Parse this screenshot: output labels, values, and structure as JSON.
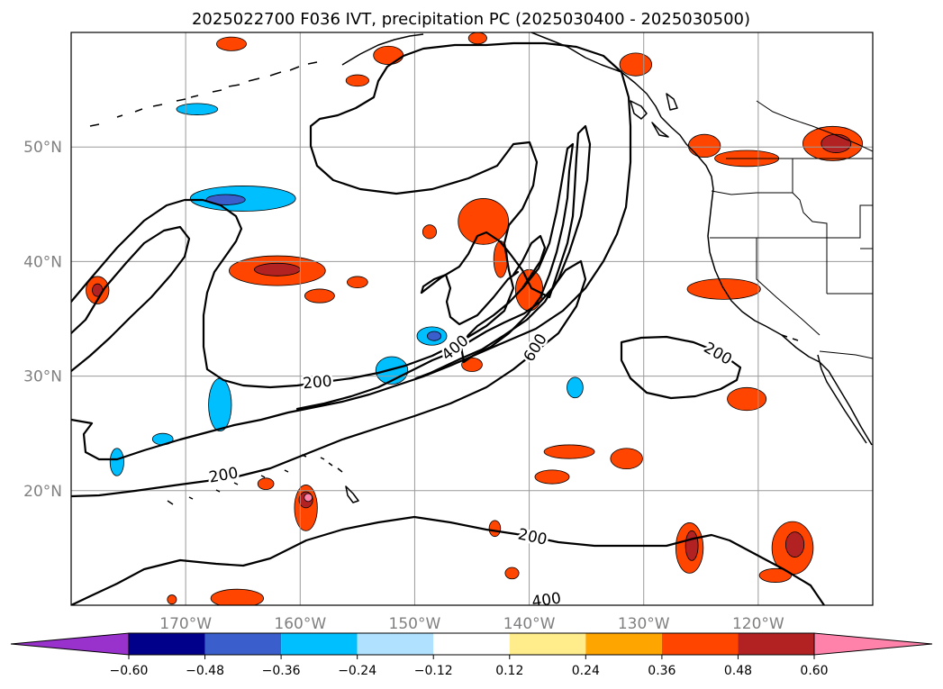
{
  "chart_data": {
    "type": "contour-map",
    "title": "2025022700 F036 IVT, precipitation PC (2025030400 - 2025030500)",
    "projection": "PlateCarree",
    "lon_range": [
      -180,
      -110
    ],
    "lat_range": [
      10,
      60
    ],
    "lon_ticks": [
      {
        "lon": -170,
        "label": "170°W"
      },
      {
        "lon": -160,
        "label": "160°W"
      },
      {
        "lon": -150,
        "label": "150°W"
      },
      {
        "lon": -140,
        "label": "140°W"
      },
      {
        "lon": -130,
        "label": "130°W"
      },
      {
        "lon": -120,
        "label": "120°W"
      }
    ],
    "lat_ticks": [
      {
        "lat": 20,
        "label": "20°N"
      },
      {
        "lat": 30,
        "label": "30°N"
      },
      {
        "lat": 40,
        "label": "40°N"
      },
      {
        "lat": 50,
        "label": "50°N"
      }
    ],
    "grid": true,
    "colorbar": {
      "orientation": "horizontal",
      "extend": "both",
      "boundaries": [
        -0.6,
        -0.48,
        -0.36,
        -0.24,
        -0.12,
        0.12,
        0.24,
        0.36,
        0.48,
        0.6
      ],
      "labels": [
        "−0.60",
        "−0.48",
        "−0.36",
        "−0.24",
        "−0.12",
        "0.12",
        "0.24",
        "0.36",
        "0.48",
        "0.60"
      ],
      "colors": [
        "#9932cc",
        "#00008b",
        "#3a5fcd",
        "#00bfff",
        "#b0e2ff",
        "#ffffff",
        "#ffec8b",
        "#ffa500",
        "#ff4500",
        "#b22222",
        "#ff82ab"
      ]
    },
    "ivt_contours": {
      "levels": [
        200,
        400,
        600
      ],
      "labels": [
        {
          "text": "200",
          "lon": -158.5,
          "lat": 29.5,
          "rot": -5
        },
        {
          "text": "200",
          "lon": -166.7,
          "lat": 21.4,
          "rot": -10
        },
        {
          "text": "200",
          "lon": -139.7,
          "lat": 16.0,
          "rot": 12
        },
        {
          "text": "200",
          "lon": -123.5,
          "lat": 32.0,
          "rot": 30
        },
        {
          "text": "400",
          "lon": -146.5,
          "lat": 32.5,
          "rot": -40
        },
        {
          "text": "400",
          "lon": -138.5,
          "lat": 10.5,
          "rot": -8
        },
        {
          "text": "600",
          "lon": -139.5,
          "lat": 32.5,
          "rot": -58
        }
      ]
    },
    "precip_blobs": [
      {
        "lon": -165,
        "lat": 45.5,
        "rx": 4.6,
        "ry": 1.1,
        "level": -0.36
      },
      {
        "lon": -166.5,
        "lat": 45.4,
        "rx": 1.7,
        "ry": 0.45,
        "level": -0.48
      },
      {
        "lon": -169,
        "lat": 53.3,
        "rx": 1.8,
        "ry": 0.5,
        "level": -0.36
      },
      {
        "lon": -167,
        "lat": 27.5,
        "rx": 1.0,
        "ry": 2.3,
        "level": -0.36
      },
      {
        "lon": -176,
        "lat": 22.5,
        "rx": 0.6,
        "ry": 1.2,
        "level": -0.36
      },
      {
        "lon": -172,
        "lat": 24.5,
        "rx": 0.9,
        "ry": 0.5,
        "level": -0.36
      },
      {
        "lon": -148.5,
        "lat": 33.5,
        "rx": 1.3,
        "ry": 0.8,
        "level": -0.36
      },
      {
        "lon": -148.3,
        "lat": 33.5,
        "rx": 0.6,
        "ry": 0.4,
        "level": -0.48
      },
      {
        "lon": -152,
        "lat": 30.5,
        "rx": 1.4,
        "ry": 1.2,
        "level": -0.36
      },
      {
        "lon": -136,
        "lat": 29.0,
        "rx": 0.7,
        "ry": 0.9,
        "level": -0.36
      },
      {
        "lon": -162,
        "lat": 39.2,
        "rx": 4.2,
        "ry": 1.3,
        "level": 0.36
      },
      {
        "lon": -162,
        "lat": 39.3,
        "rx": 2.0,
        "ry": 0.55,
        "level": 0.48
      },
      {
        "lon": -144,
        "lat": 43.5,
        "rx": 2.2,
        "ry": 2.0,
        "level": 0.36
      },
      {
        "lon": -142.5,
        "lat": 40.2,
        "rx": 0.6,
        "ry": 1.6,
        "level": 0.36
      },
      {
        "lon": -140,
        "lat": 37.5,
        "rx": 1.2,
        "ry": 1.8,
        "level": 0.36
      },
      {
        "lon": -145,
        "lat": 31.0,
        "rx": 0.9,
        "ry": 0.6,
        "level": 0.36
      },
      {
        "lon": -124.7,
        "lat": 50.1,
        "rx": 1.4,
        "ry": 1.0,
        "level": 0.36
      },
      {
        "lon": -121,
        "lat": 49.0,
        "rx": 2.8,
        "ry": 0.7,
        "level": 0.36
      },
      {
        "lon": -113.5,
        "lat": 50.3,
        "rx": 2.6,
        "ry": 1.5,
        "level": 0.36
      },
      {
        "lon": -113.2,
        "lat": 50.3,
        "rx": 1.3,
        "ry": 0.8,
        "level": 0.48
      },
      {
        "lon": -123,
        "lat": 37.6,
        "rx": 3.2,
        "ry": 0.9,
        "level": 0.36
      },
      {
        "lon": -130.7,
        "lat": 57.2,
        "rx": 1.4,
        "ry": 1.0,
        "level": 0.36
      },
      {
        "lon": -121,
        "lat": 28.0,
        "rx": 1.7,
        "ry": 1.0,
        "level": 0.36
      },
      {
        "lon": -136.5,
        "lat": 23.4,
        "rx": 2.2,
        "ry": 0.6,
        "level": 0.36
      },
      {
        "lon": -131.5,
        "lat": 22.8,
        "rx": 1.4,
        "ry": 0.9,
        "level": 0.36
      },
      {
        "lon": -138,
        "lat": 21.2,
        "rx": 1.5,
        "ry": 0.6,
        "level": 0.36
      },
      {
        "lon": -159.5,
        "lat": 18.5,
        "rx": 1.0,
        "ry": 2.0,
        "level": 0.36
      },
      {
        "lon": -159.5,
        "lat": 19.2,
        "rx": 0.6,
        "ry": 0.7,
        "level": 0.48
      },
      {
        "lon": -159.3,
        "lat": 19.4,
        "rx": 0.35,
        "ry": 0.35,
        "level": 0.6
      },
      {
        "lon": -126,
        "lat": 15.0,
        "rx": 1.2,
        "ry": 2.2,
        "level": 0.36
      },
      {
        "lon": -125.8,
        "lat": 15.2,
        "rx": 0.55,
        "ry": 1.3,
        "level": 0.48
      },
      {
        "lon": -117,
        "lat": 15.0,
        "rx": 1.8,
        "ry": 2.3,
        "level": 0.36
      },
      {
        "lon": -116.8,
        "lat": 15.3,
        "rx": 0.8,
        "ry": 1.1,
        "level": 0.48
      },
      {
        "lon": -165.5,
        "lat": 10.6,
        "rx": 2.3,
        "ry": 0.8,
        "level": 0.36
      },
      {
        "lon": -177.7,
        "lat": 37.5,
        "rx": 1.0,
        "ry": 1.2,
        "level": 0.36
      },
      {
        "lon": -177.7,
        "lat": 37.5,
        "rx": 0.45,
        "ry": 0.55,
        "level": 0.48
      },
      {
        "lon": -166,
        "lat": 59.0,
        "rx": 1.3,
        "ry": 0.6,
        "level": 0.36
      },
      {
        "lon": -155,
        "lat": 55.8,
        "rx": 1.0,
        "ry": 0.5,
        "level": 0.36
      },
      {
        "lon": -152.3,
        "lat": 58.0,
        "rx": 1.3,
        "ry": 0.8,
        "level": 0.36
      },
      {
        "lon": -144.5,
        "lat": 59.5,
        "rx": 0.8,
        "ry": 0.5,
        "level": 0.36
      },
      {
        "lon": -155,
        "lat": 38.2,
        "rx": 0.9,
        "ry": 0.5,
        "level": 0.36
      },
      {
        "lon": -158.3,
        "lat": 37.0,
        "rx": 1.3,
        "ry": 0.6,
        "level": 0.36
      },
      {
        "lon": -163,
        "lat": 20.6,
        "rx": 0.7,
        "ry": 0.5,
        "level": 0.36
      },
      {
        "lon": -141.5,
        "lat": 12.8,
        "rx": 0.6,
        "ry": 0.5,
        "level": 0.36
      },
      {
        "lon": -143,
        "lat": 16.7,
        "rx": 0.5,
        "ry": 0.7,
        "level": 0.36
      },
      {
        "lon": -118.5,
        "lat": 12.6,
        "rx": 1.4,
        "ry": 0.6,
        "level": 0.36
      },
      {
        "lon": -148.7,
        "lat": 42.6,
        "rx": 0.6,
        "ry": 0.6,
        "level": 0.36
      },
      {
        "lon": -171.2,
        "lat": 10.5,
        "rx": 0.4,
        "ry": 0.4,
        "level": 0.36
      }
    ]
  }
}
